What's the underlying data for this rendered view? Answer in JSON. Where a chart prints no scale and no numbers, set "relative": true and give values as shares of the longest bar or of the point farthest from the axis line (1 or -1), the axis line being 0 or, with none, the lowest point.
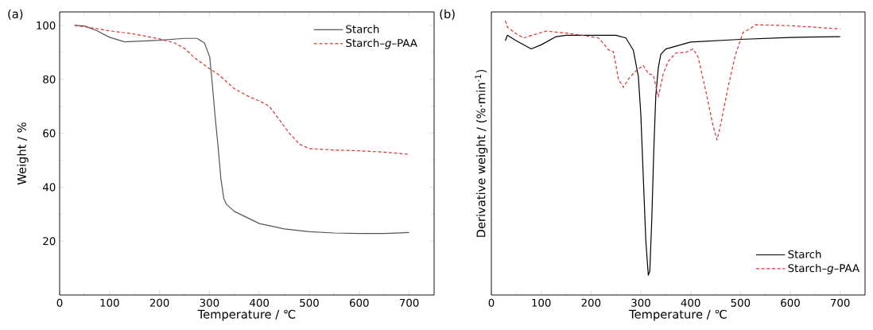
{
  "chart_data": [
    {
      "type": "line",
      "title": "(a)",
      "xlabel": "Temperature / ℃",
      "ylabel": "Weight / %",
      "xlim": [
        0,
        750
      ],
      "ylim": [
        0,
        105
      ],
      "xticks": [
        0,
        100,
        200,
        300,
        400,
        500,
        600,
        700
      ],
      "yticks": [
        20,
        40,
        60,
        80,
        100
      ],
      "legend": "top right",
      "grid": false,
      "series": [
        {
          "name": "Starch",
          "color": "#555555",
          "line_style": "solid",
          "x": [
            30,
            50,
            75,
            100,
            130,
            200,
            250,
            275,
            290,
            300.6,
            306,
            312,
            317.6,
            323,
            329,
            334.6,
            350,
            400,
            450,
            500,
            550,
            600,
            650,
            700
          ],
          "values": [
            100,
            99.8,
            98,
            95.6,
            93.9,
            94.5,
            95.2,
            95.2,
            93.5,
            88.3,
            77.8,
            65,
            54.6,
            43,
            35.6,
            33.5,
            31,
            26.5,
            24.5,
            23.5,
            23,
            22.8,
            22.8,
            23.2
          ]
        },
        {
          "name": "Starch–*g*–PAA",
          "color": "#e03030",
          "line_style": "dashed",
          "x": [
            30,
            50,
            100,
            150,
            200,
            230,
            250,
            270,
            300,
            320,
            350,
            380,
            400,
            420,
            440,
            460,
            480,
            500,
            550,
            600,
            650,
            700
          ],
          "values": [
            100,
            99.5,
            98,
            96.8,
            95,
            93.5,
            91.5,
            88,
            84,
            81.5,
            76.5,
            73.5,
            72,
            70,
            65,
            60,
            56,
            54.3,
            53.8,
            53.5,
            53,
            52.2
          ]
        }
      ]
    },
    {
      "type": "line",
      "title": "(b)",
      "xlabel": "Temperature / ℃",
      "ylabel": "Derivative weight / (%·min$^{-1}$)",
      "xlim": [
        0,
        750
      ],
      "xticks": [
        0,
        100,
        200,
        300,
        400,
        500,
        600,
        700
      ],
      "relative": true,
      "legend": "bottom right",
      "grid": false,
      "series": [
        {
          "name": "Starch",
          "color": "#000000",
          "line_style": "solid",
          "x": [
            28,
            32,
            50,
            80,
            100,
            130,
            150,
            200,
            250,
            270,
            285,
            295,
            300,
            305,
            310,
            315,
            318,
            322,
            326,
            330,
            335,
            340,
            350,
            400,
            500,
            600,
            700
          ],
          "values": [
            0.927,
            0.947,
            0.927,
            0.897,
            0.912,
            0.942,
            0.947,
            0.947,
            0.947,
            0.937,
            0.892,
            0.797,
            0.657,
            0.427,
            0.197,
            0.072,
            0.087,
            0.277,
            0.527,
            0.727,
            0.827,
            0.877,
            0.897,
            0.922,
            0.932,
            0.939,
            0.942
          ]
        },
        {
          "name": "Starch–*g*–PAA",
          "color": "#e03030",
          "line_style": "dashed",
          "x": [
            28,
            32,
            50,
            65,
            85,
            110,
            150,
            200,
            215,
            225,
            235,
            245,
            255,
            265,
            275,
            290,
            305,
            315,
            325,
            335,
            345,
            355,
            370,
            390,
            405,
            415,
            430,
            445,
            453,
            462,
            475,
            490,
            505,
            520,
            530,
            600,
            700
          ],
          "values": [
            1.0,
            0.977,
            0.952,
            0.937,
            0.949,
            0.962,
            0.955,
            0.942,
            0.937,
            0.917,
            0.894,
            0.887,
            0.787,
            0.757,
            0.787,
            0.817,
            0.837,
            0.807,
            0.802,
            0.722,
            0.807,
            0.852,
            0.882,
            0.885,
            0.897,
            0.867,
            0.747,
            0.617,
            0.565,
            0.637,
            0.757,
            0.877,
            0.957,
            0.972,
            0.985,
            0.982,
            0.97
          ]
        }
      ]
    }
  ]
}
